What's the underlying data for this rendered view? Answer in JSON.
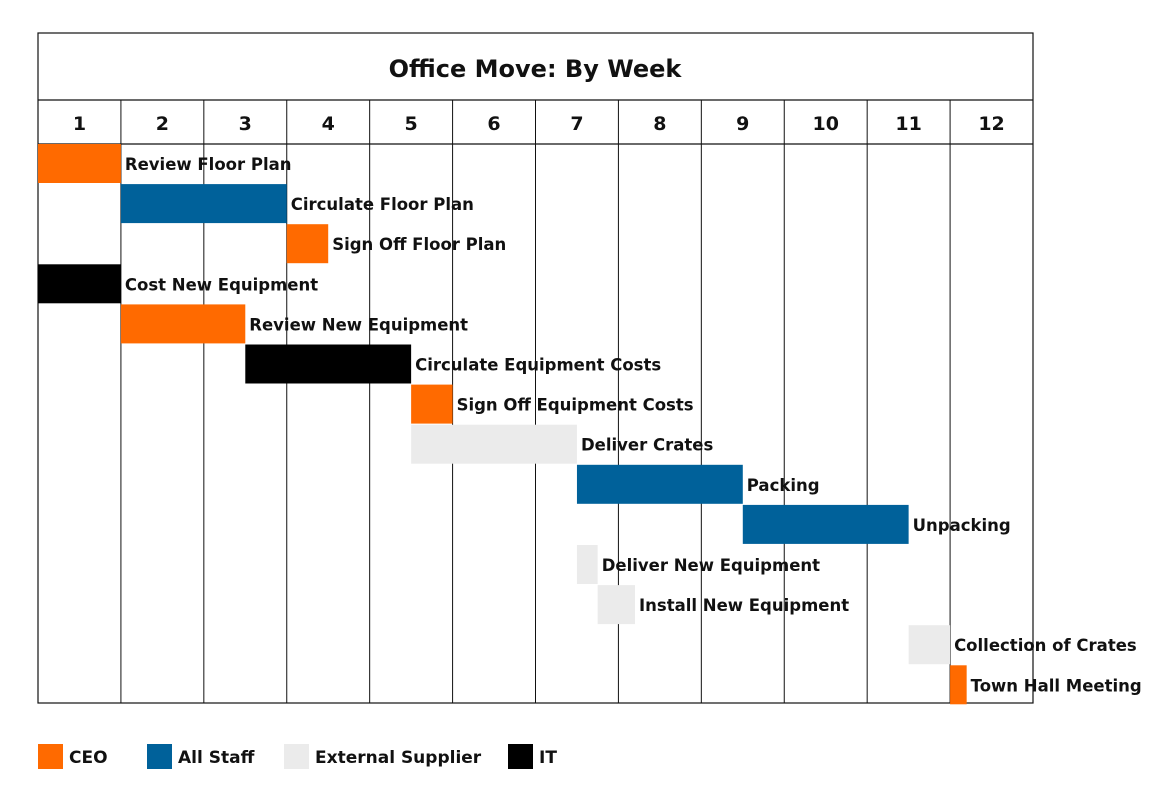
{
  "chart_data": {
    "type": "gantt",
    "title": "Office Move: By Week",
    "x_unit": "week",
    "weeks": [
      "1",
      "2",
      "3",
      "4",
      "5",
      "6",
      "7",
      "8",
      "9",
      "10",
      "11",
      "12"
    ],
    "x_range": [
      0,
      12
    ],
    "grid": true,
    "legend_position": "bottom-left",
    "owners": [
      {
        "key": "ceo",
        "label": "CEO",
        "color": "#ff6a00"
      },
      {
        "key": "staff",
        "label": "All Staff",
        "color": "#00619a"
      },
      {
        "key": "supplier",
        "label": "External Supplier",
        "color": "#ebebeb"
      },
      {
        "key": "it",
        "label": "IT",
        "color": "#000000"
      }
    ],
    "tasks": [
      {
        "name": "Review Floor Plan",
        "start": 0,
        "end": 1,
        "owner": "ceo"
      },
      {
        "name": "Circulate Floor Plan",
        "start": 1,
        "end": 3,
        "owner": "staff"
      },
      {
        "name": "Sign Off Floor Plan",
        "start": 3,
        "end": 3.5,
        "owner": "ceo"
      },
      {
        "name": "Cost New Equipment",
        "start": 0,
        "end": 1,
        "owner": "it"
      },
      {
        "name": "Review New Equipment",
        "start": 1,
        "end": 2.5,
        "owner": "ceo"
      },
      {
        "name": "Circulate Equipment Costs",
        "start": 2.5,
        "end": 4.5,
        "owner": "it"
      },
      {
        "name": "Sign Off Equipment Costs",
        "start": 4.5,
        "end": 5,
        "owner": "ceo"
      },
      {
        "name": "Deliver Crates",
        "start": 4.5,
        "end": 6.5,
        "owner": "supplier"
      },
      {
        "name": "Packing",
        "start": 6.5,
        "end": 8.5,
        "owner": "staff"
      },
      {
        "name": "Unpacking",
        "start": 8.5,
        "end": 10.5,
        "owner": "staff"
      },
      {
        "name": "Deliver New Equipment",
        "start": 6.5,
        "end": 6.75,
        "owner": "supplier"
      },
      {
        "name": "Install New Equipment",
        "start": 6.75,
        "end": 7.2,
        "owner": "supplier"
      },
      {
        "name": "Collection of Crates",
        "start": 10.5,
        "end": 11,
        "owner": "supplier"
      },
      {
        "name": "Town Hall Meeting",
        "start": 11,
        "end": 11.2,
        "owner": "ceo"
      }
    ]
  }
}
